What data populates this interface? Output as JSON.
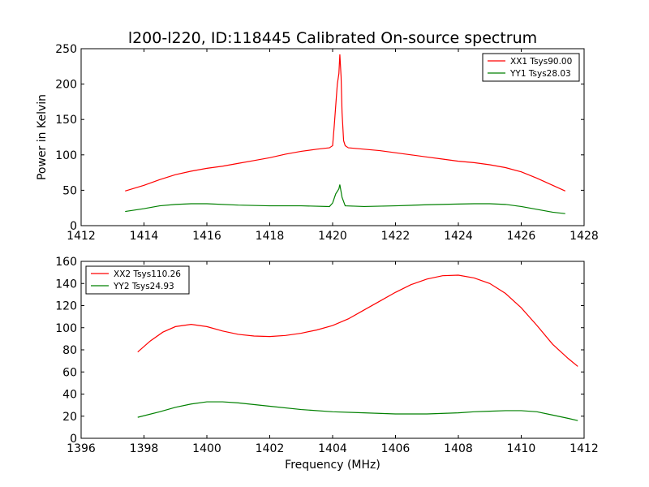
{
  "figure_title": "l200-l220, ID:118445 Calibrated On-source spectrum",
  "chart_data": [
    {
      "type": "line",
      "title": "l200-l220, ID:118445 Calibrated On-source spectrum",
      "xlabel": "",
      "ylabel": "Power in Kelvin",
      "xlim": [
        1412,
        1428
      ],
      "ylim": [
        0,
        250
      ],
      "xticks": [
        1412,
        1414,
        1416,
        1418,
        1420,
        1422,
        1424,
        1426,
        1428
      ],
      "yticks": [
        0,
        50,
        100,
        150,
        200,
        250
      ],
      "grid": false,
      "legend_position": "upper right",
      "series": [
        {
          "name": "XX1 Tsys90.00",
          "color": "#ff0000",
          "x": [
            1413.4,
            1414.0,
            1414.5,
            1415.0,
            1415.5,
            1416.0,
            1416.5,
            1417.0,
            1417.5,
            1418.0,
            1418.5,
            1419.0,
            1419.5,
            1419.9,
            1420.0,
            1420.05,
            1420.1,
            1420.15,
            1420.2,
            1420.23,
            1420.27,
            1420.3,
            1420.35,
            1420.4,
            1420.5,
            1421.0,
            1421.5,
            1422.0,
            1422.5,
            1423.0,
            1423.5,
            1424.0,
            1424.5,
            1425.0,
            1425.5,
            1426.0,
            1426.5,
            1427.0,
            1427.4
          ],
          "y": [
            49.0,
            57.0,
            65.0,
            72.0,
            77.0,
            81.0,
            84.0,
            88.0,
            92.0,
            96.0,
            101.0,
            105.0,
            108.0,
            110.0,
            113.0,
            140.0,
            170.0,
            200.0,
            215.0,
            242.0,
            210.0,
            160.0,
            120.0,
            113.0,
            110.0,
            108.0,
            106.0,
            103.0,
            100.0,
            97.0,
            94.0,
            91.0,
            89.0,
            86.0,
            82.0,
            76.0,
            67.0,
            57.0,
            49.0
          ]
        },
        {
          "name": "YY1 Tsys28.03",
          "color": "#008000",
          "x": [
            1413.4,
            1414.0,
            1414.5,
            1415.0,
            1415.5,
            1416.0,
            1417.0,
            1418.0,
            1419.0,
            1419.9,
            1420.0,
            1420.1,
            1420.2,
            1420.23,
            1420.3,
            1420.4,
            1421.0,
            1422.0,
            1423.0,
            1424.0,
            1424.5,
            1425.0,
            1425.5,
            1426.0,
            1426.5,
            1427.0,
            1427.4
          ],
          "y": [
            20.0,
            24.0,
            28.0,
            30.0,
            31.0,
            31.0,
            29.0,
            28.0,
            28.0,
            27.0,
            32.0,
            45.0,
            52.0,
            58.0,
            40.0,
            28.0,
            27.0,
            28.0,
            29.5,
            30.5,
            31.0,
            31.0,
            30.0,
            27.0,
            23.0,
            19.0,
            17.0
          ]
        }
      ]
    },
    {
      "type": "line",
      "title": "",
      "xlabel": "Frequency (MHz)",
      "ylabel": "",
      "xlim": [
        1396,
        1412
      ],
      "ylim": [
        0,
        160
      ],
      "xticks": [
        1396,
        1398,
        1400,
        1402,
        1404,
        1406,
        1408,
        1410,
        1412
      ],
      "yticks": [
        0,
        20,
        40,
        60,
        80,
        100,
        120,
        140,
        160
      ],
      "grid": false,
      "legend_position": "upper left",
      "series": [
        {
          "name": "XX2 Tsys110.26",
          "color": "#ff0000",
          "x": [
            1397.8,
            1398.2,
            1398.6,
            1399.0,
            1399.5,
            1400.0,
            1400.5,
            1401.0,
            1401.5,
            1402.0,
            1402.5,
            1403.0,
            1403.5,
            1404.0,
            1404.5,
            1405.0,
            1405.5,
            1406.0,
            1406.5,
            1407.0,
            1407.5,
            1408.0,
            1408.5,
            1409.0,
            1409.5,
            1410.0,
            1410.5,
            1411.0,
            1411.5,
            1411.8
          ],
          "y": [
            78.0,
            88.0,
            96.0,
            101.0,
            103.0,
            101.0,
            97.0,
            94.0,
            92.5,
            92.0,
            93.0,
            95.0,
            98.0,
            102.0,
            108.0,
            116.0,
            124.0,
            132.0,
            139.0,
            144.0,
            147.0,
            147.5,
            145.0,
            140.0,
            131.0,
            118.0,
            102.0,
            85.0,
            72.0,
            65.0
          ]
        },
        {
          "name": "YY2 Tsys24.93",
          "color": "#008000",
          "x": [
            1397.8,
            1398.5,
            1399.0,
            1399.5,
            1400.0,
            1400.5,
            1401.0,
            1402.0,
            1403.0,
            1404.0,
            1405.0,
            1406.0,
            1407.0,
            1408.0,
            1408.5,
            1409.0,
            1409.5,
            1410.0,
            1410.5,
            1411.0,
            1411.5,
            1411.8
          ],
          "y": [
            19.0,
            24.0,
            28.0,
            31.0,
            33.0,
            33.0,
            32.0,
            29.0,
            26.0,
            24.0,
            23.0,
            22.0,
            22.0,
            23.0,
            24.0,
            24.5,
            25.0,
            25.0,
            24.0,
            21.0,
            18.0,
            16.0
          ]
        }
      ]
    }
  ]
}
